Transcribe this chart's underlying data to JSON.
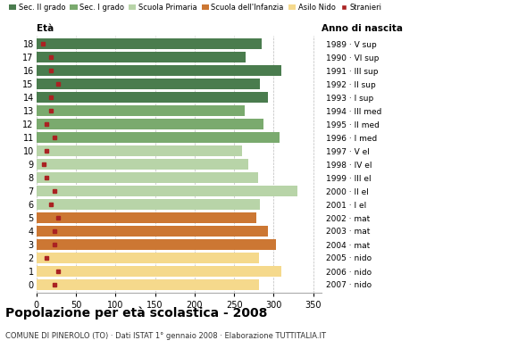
{
  "ages": [
    18,
    17,
    16,
    15,
    14,
    13,
    12,
    11,
    10,
    9,
    8,
    7,
    6,
    5,
    4,
    3,
    2,
    1,
    0
  ],
  "year_labels": [
    "1989 · V sup",
    "1990 · VI sup",
    "1991 · III sup",
    "1992 · II sup",
    "1993 · I sup",
    "1994 · III med",
    "1995 · II med",
    "1996 · I med",
    "1997 · V el",
    "1998 · IV el",
    "1999 · III el",
    "2000 · II el",
    "2001 · I el",
    "2002 · mat",
    "2003 · mat",
    "2004 · mat",
    "2005 · nido",
    "2006 · nido",
    "2007 · nido"
  ],
  "bar_values": [
    285,
    265,
    310,
    283,
    293,
    263,
    287,
    307,
    260,
    268,
    280,
    330,
    283,
    278,
    293,
    303,
    282,
    310,
    282
  ],
  "stranieri_values": [
    8,
    18,
    18,
    28,
    18,
    18,
    13,
    23,
    13,
    10,
    13,
    23,
    18,
    28,
    23,
    23,
    13,
    28,
    23
  ],
  "bar_colors": [
    "#4a7c4e",
    "#4a7c4e",
    "#4a7c4e",
    "#4a7c4e",
    "#4a7c4e",
    "#7aaa6e",
    "#7aaa6e",
    "#7aaa6e",
    "#b8d4a8",
    "#b8d4a8",
    "#b8d4a8",
    "#b8d4a8",
    "#b8d4a8",
    "#cc7733",
    "#cc7733",
    "#cc7733",
    "#f5d98c",
    "#f5d98c",
    "#f5d98c"
  ],
  "legend_labels": [
    "Sec. II grado",
    "Sec. I grado",
    "Scuola Primaria",
    "Scuola dell'Infanzia",
    "Asilo Nido",
    "Stranieri"
  ],
  "legend_colors": [
    "#4a7c4e",
    "#7aaa6e",
    "#b8d4a8",
    "#cc7733",
    "#f5d98c",
    "#aa2222"
  ],
  "title": "Popolazione per età scolastica - 2008",
  "subtitle": "COMUNE DI PINEROLO (TO) · Dati ISTAT 1° gennaio 2008 · Elaborazione TUTTITALIA.IT",
  "xlabel_eta": "Età",
  "xlabel_anno": "Anno di nascita",
  "xlim": [
    0,
    360
  ],
  "xticks": [
    0,
    50,
    100,
    150,
    200,
    250,
    300,
    350
  ],
  "stranieri_color": "#aa2222",
  "bg_color": "#ffffff",
  "bar_height": 0.85
}
